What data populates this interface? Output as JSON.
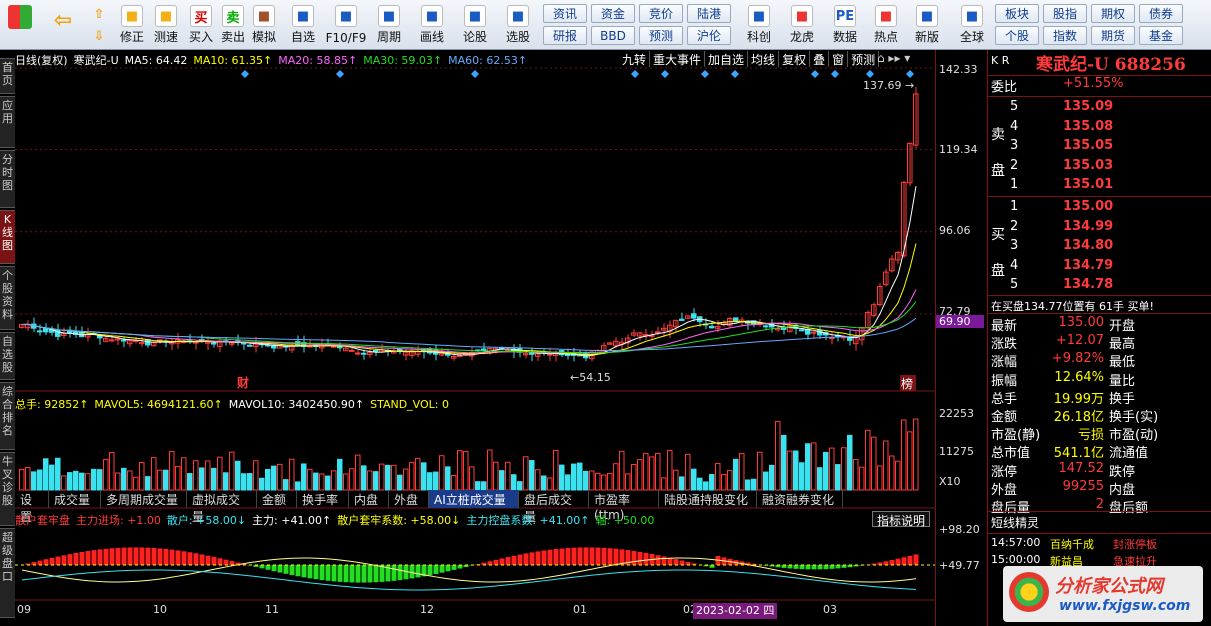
{
  "toolbar": {
    "groups": [
      {
        "label": "修正",
        "icon": "edit-icon"
      },
      {
        "label": "测速",
        "icon": "clock-icon"
      },
      {
        "label": "买入",
        "icon": "buy-icon",
        "glyph": "买"
      },
      {
        "label": "卖出",
        "icon": "sell-icon",
        "glyph": "卖"
      },
      {
        "label": "模拟",
        "icon": "hammer-icon"
      },
      {
        "label": "自选",
        "icon": "folder-icon"
      },
      {
        "label": "F10/F9",
        "icon": "f10-icon"
      },
      {
        "label": "周期",
        "icon": "period-icon"
      },
      {
        "label": "画线",
        "icon": "pencil-icon"
      },
      {
        "label": "论股",
        "icon": "forum-icon"
      },
      {
        "label": "选股",
        "icon": "select-icon"
      },
      {
        "label": "科创",
        "icon": "kechuang-icon"
      },
      {
        "label": "龙虎",
        "icon": "dragon-icon"
      },
      {
        "label": "数据",
        "icon": "pe-icon",
        "glyph": "PE"
      },
      {
        "label": "热点",
        "icon": "hot-icon"
      },
      {
        "label": "新版",
        "icon": "newver-icon"
      },
      {
        "label": "全球",
        "icon": "globe-icon"
      }
    ],
    "smallbtns": [
      "资讯",
      "资金",
      "竞价",
      "陆港",
      "研报",
      "BBD",
      "预测",
      "沪伦",
      "板块",
      "股指",
      "期权",
      "债券",
      "个股",
      "指数",
      "期货",
      "基金"
    ]
  },
  "left_tabs": [
    "首页",
    "应用",
    "分时图",
    "K线图",
    "个股资料",
    "自选股",
    "综合排名",
    "牛叉诊股",
    "超级盘口"
  ],
  "header": {
    "period": "日线(复权)",
    "name": "寒武纪-U",
    "ma5": "MA5: 64.42",
    "ma10": "MA10: 61.35↑",
    "ma20": "MA20: 58.85↑",
    "ma30": "MA30: 59.03↑",
    "ma60": "MA60: 62.53↑",
    "right_buttons": [
      "九转",
      "重大事件",
      "加自选",
      "均线",
      "复权",
      "叠",
      "窗",
      "预测"
    ]
  },
  "price_axis": [
    "142.33",
    "119.34",
    "96.06",
    "72.79",
    "69.90"
  ],
  "vol_axis": [
    "22253",
    "11275",
    "X10"
  ],
  "ind_axis": [
    "+98.20",
    "+49.77"
  ],
  "annotations": {
    "high": "137.69",
    "low": "54.15",
    "cai": "财",
    "bang": "榜"
  },
  "volume_header": {
    "total": "总手: 92852↑",
    "mavol5": "MAVOL5: 4694121.60↑",
    "mavol10": "MAVOL10: 3402450.90↑",
    "stand": "STAND_VOL: 0"
  },
  "bottom_tabs": [
    "设置",
    "成交量",
    "多周期成交量",
    "虚拟成交量",
    "金额",
    "换手率",
    "内盘",
    "外盘",
    "AI立桩成交量",
    "盘后成交量",
    "市盈率(ttm)",
    "陆股通持股变化",
    "融资融券变化"
  ],
  "indicator_header": {
    "name": "散户套牢盘",
    "a": "主力进场: +1.00",
    "b": "散户: +58.00↓",
    "c": "主力: +41.00↑",
    "d": "散户套牢系数: +58.00↓",
    "e": "主力控盘系数: +41.00↑",
    "f": "轴: +50.00"
  },
  "indicator_btn": "指标说明",
  "xaxis": [
    "09",
    "10",
    "11",
    "12",
    "01",
    "02",
    "03"
  ],
  "date_badge": "2023-02-02 四",
  "right_panel": {
    "market": "K R",
    "title": "寒武纪-U 688256",
    "weibi_label": "委比",
    "weibi": "+51.55%",
    "sell_label": "卖盘",
    "buy_label": "买盘",
    "asks": [
      [
        "5",
        "135.09"
      ],
      [
        "4",
        "135.08"
      ],
      [
        "3",
        "135.05"
      ],
      [
        "2",
        "135.03"
      ],
      [
        "1",
        "135.01"
      ]
    ],
    "bids": [
      [
        "1",
        "135.00"
      ],
      [
        "2",
        "134.99"
      ],
      [
        "3",
        "134.80"
      ],
      [
        "4",
        "134.79"
      ],
      [
        "5",
        "134.78"
      ]
    ],
    "status": "在买盘134.77位置有 61手 买单!",
    "quotes": [
      [
        "最新",
        "135.00",
        "开盘"
      ],
      [
        "涨跌",
        "+12.07",
        "最高"
      ],
      [
        "涨幅",
        "+9.82%",
        "最低"
      ],
      [
        "振幅",
        "12.64%",
        "量比"
      ],
      [
        "总手",
        "19.99万",
        "换手"
      ],
      [
        "金额",
        "26.18亿",
        "换手(实)"
      ],
      [
        "市盈(静)",
        "亏损",
        "市盈(动)"
      ],
      [
        "总市值",
        "541.1亿",
        "流通值"
      ],
      [
        "涨停",
        "147.52",
        "跌停"
      ],
      [
        "外盘",
        "99255",
        "内盘"
      ],
      [
        "盘后量",
        "2",
        "盘后额"
      ]
    ],
    "jingling_title": "短线精灵",
    "jingling": [
      [
        "14:57:00",
        "百纳千成",
        "封涨停板"
      ],
      [
        "15:00:00",
        "新益昌",
        "急速拉升"
      ]
    ]
  },
  "watermark": {
    "text": "分析家公式网",
    "url": "www.fxjgsw.com"
  },
  "chart_data": {
    "type": "candlestick",
    "price_axis_ticks": [
      142.33,
      119.34,
      96.06,
      72.79
    ],
    "high": 137.69,
    "low": 54.15,
    "last": 135.0
  }
}
